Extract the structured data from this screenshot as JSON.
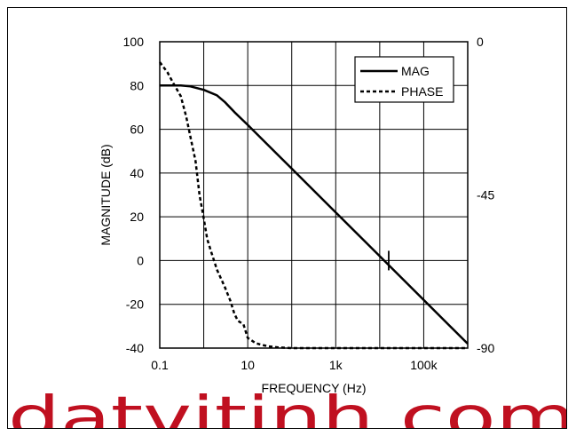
{
  "chart_data": {
    "type": "line",
    "xlabel": "FREQUENCY (Hz)",
    "ylabel": "MAGNITUDE (dB)",
    "x_scale": "log",
    "xlim": [
      0.1,
      1000000
    ],
    "ylim": [
      -40,
      100
    ],
    "y2lim": [
      -90,
      0
    ],
    "x_ticks": [
      {
        "value": 0.1,
        "label": "0.1"
      },
      {
        "value": 10,
        "label": "10"
      },
      {
        "value": 1000,
        "label": "1k"
      },
      {
        "value": 100000,
        "label": "100k"
      }
    ],
    "y_ticks": [
      {
        "value": 100,
        "label": "100"
      },
      {
        "value": 80,
        "label": "80"
      },
      {
        "value": 60,
        "label": "60"
      },
      {
        "value": 40,
        "label": "40"
      },
      {
        "value": 20,
        "label": "20"
      },
      {
        "value": 0,
        "label": "0"
      },
      {
        "value": -20,
        "label": "-20"
      },
      {
        "value": -40,
        "label": "-40"
      }
    ],
    "y2_ticks": [
      {
        "value": 0,
        "label": "0"
      },
      {
        "value": -45,
        "label": "-45"
      },
      {
        "value": -90,
        "label": "-90"
      }
    ],
    "grid": true,
    "legend_position": "top-right",
    "series": [
      {
        "name": "MAG",
        "axis": "left",
        "style": "solid",
        "x": [
          0.1,
          0.2,
          0.3,
          0.5,
          1,
          2,
          3,
          5,
          10,
          100,
          1000,
          10000,
          100000,
          1000000
        ],
        "y": [
          80,
          80,
          80,
          79.6,
          78,
          75.5,
          72.5,
          67.8,
          62,
          42,
          22,
          2,
          -18,
          -38
        ]
      },
      {
        "name": "PHASE",
        "axis": "right",
        "style": "dashed",
        "x": [
          0.1,
          0.15,
          0.2,
          0.3,
          0.4,
          0.5,
          0.65,
          0.8,
          1,
          1.2,
          1.5,
          2,
          3,
          4,
          5,
          6,
          8,
          10,
          15,
          20,
          30,
          50,
          100,
          1000,
          1000000
        ],
        "y": [
          -6,
          -9,
          -12,
          -16,
          -22,
          -28,
          -35,
          -45,
          -52,
          -58,
          -62,
          -67,
          -72,
          -76,
          -80,
          -82,
          -83,
          -87,
          -88.5,
          -89,
          -89.5,
          -89.8,
          -90,
          -90,
          -90
        ]
      }
    ],
    "annotation": {
      "x": 16000,
      "y": 0,
      "mark": "vertical-tick"
    }
  },
  "watermark": {
    "text": "datvitinh.com",
    "color": "#c01020"
  }
}
